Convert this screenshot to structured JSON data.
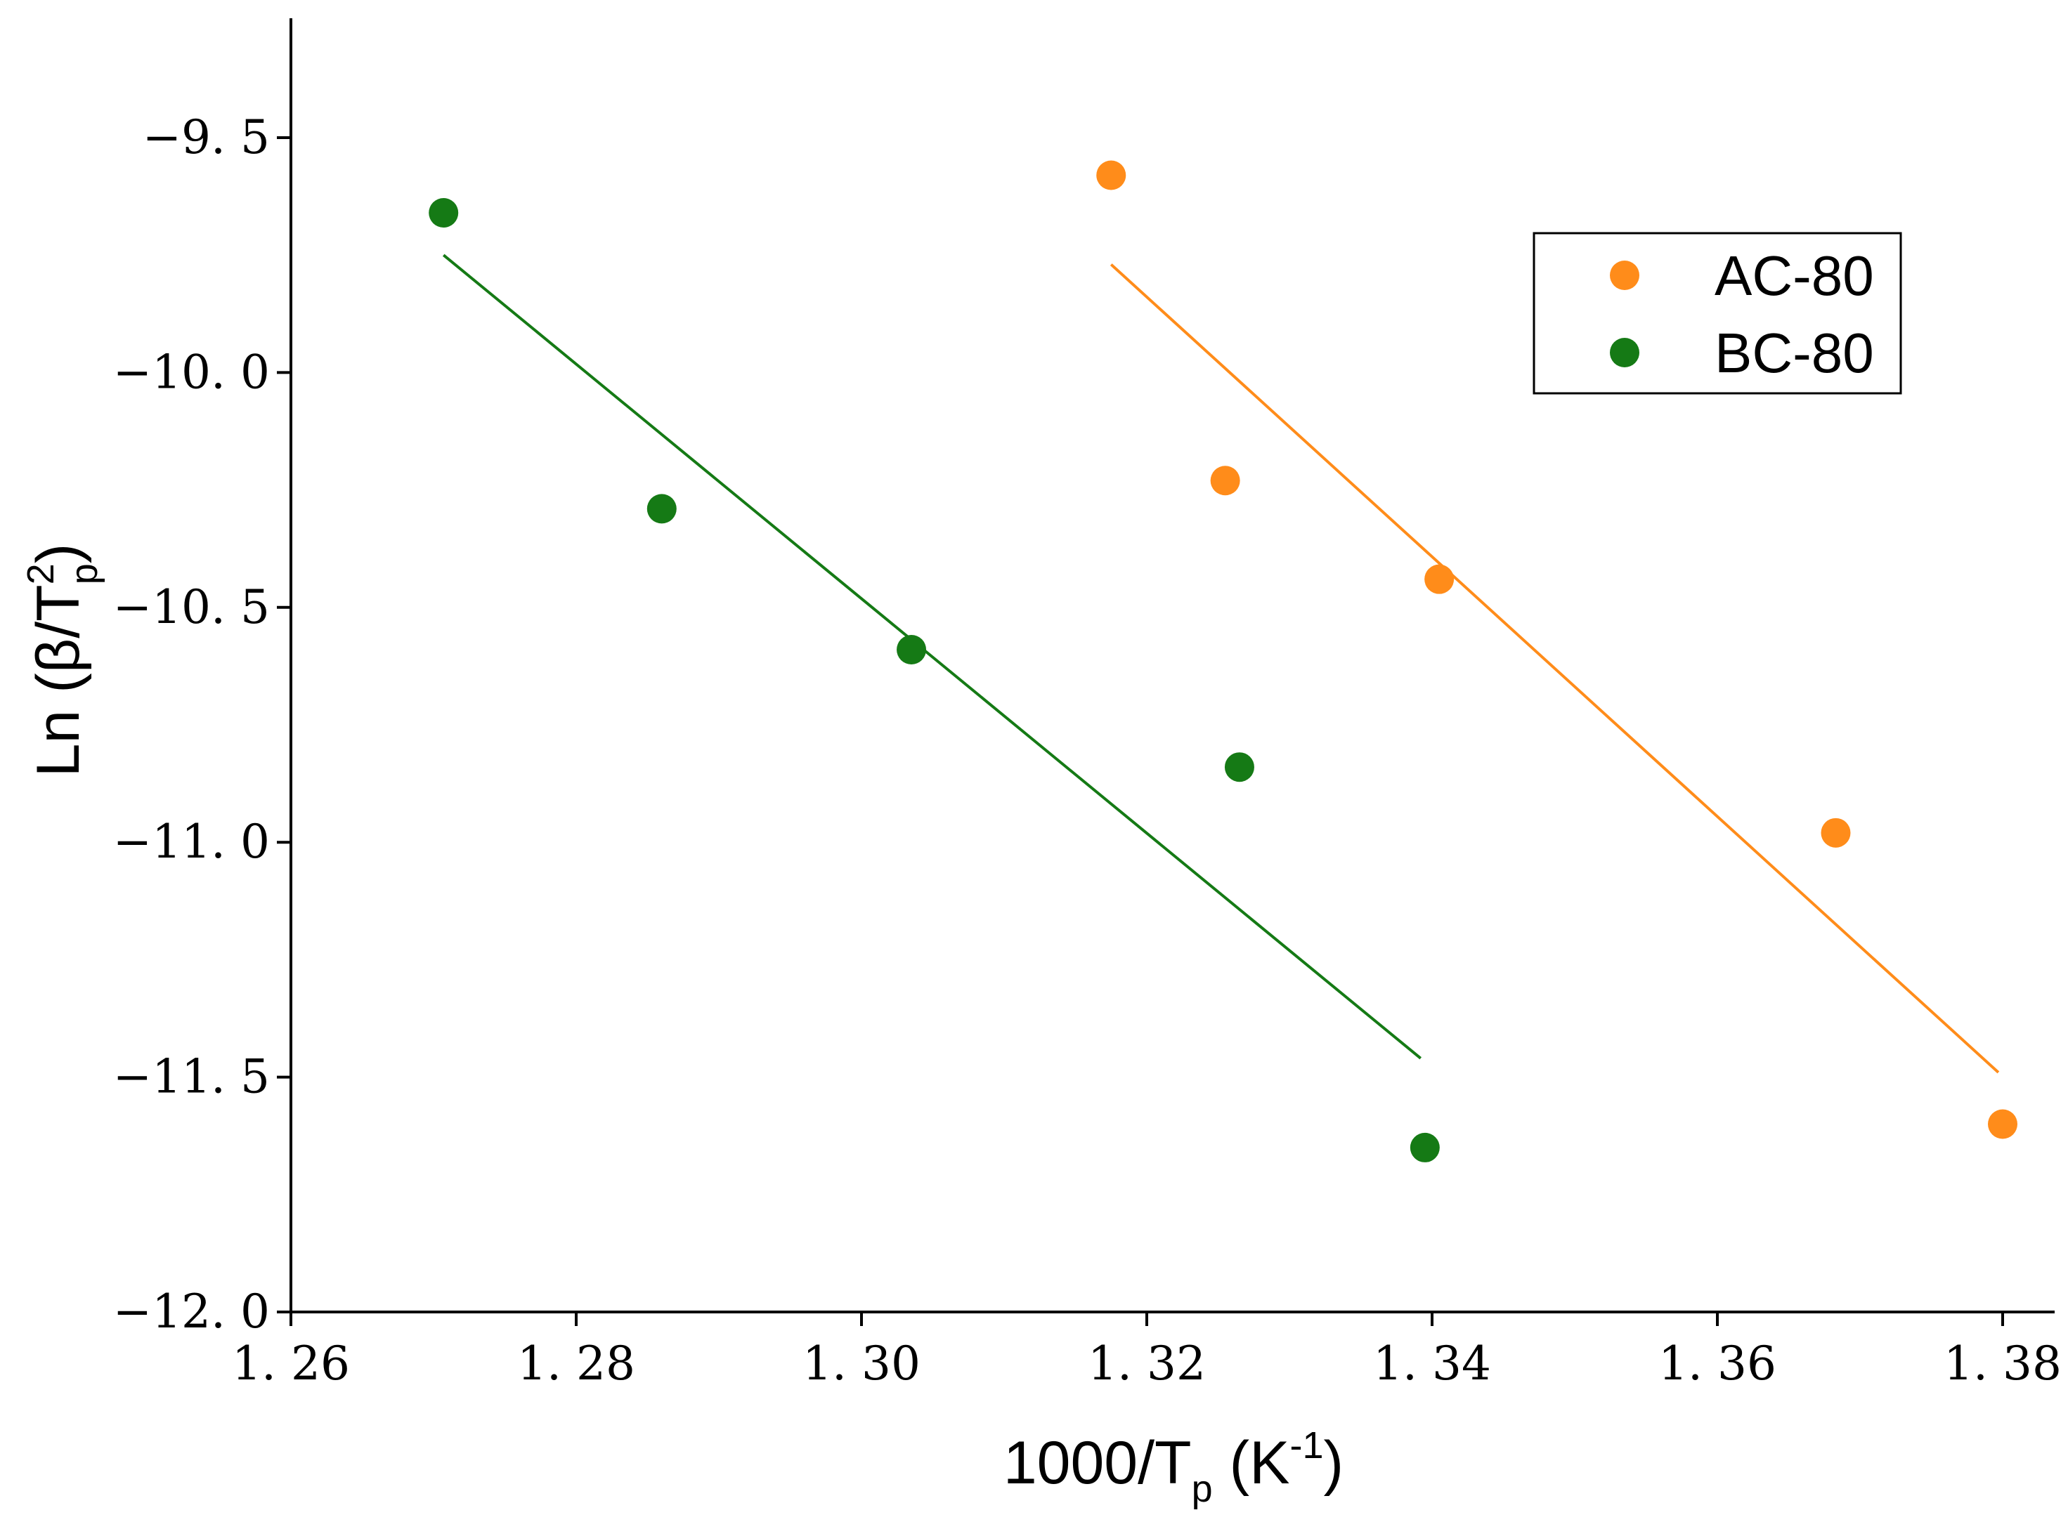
{
  "chart_data": {
    "type": "scatter",
    "title": "",
    "xlabel": {
      "main": "1000/T",
      "sub": "p",
      "unit_open": " (K",
      "unit_sup": "-1",
      "unit_close": ")"
    },
    "ylabel": {
      "main": "Ln (β/T",
      "sup": "2",
      "sub": "p",
      "close": ")"
    },
    "xlim": [
      1.26,
      1.39
    ],
    "ylim": [
      -12.0,
      -9.3
    ],
    "xticks": [
      1.26,
      1.28,
      1.3,
      1.32,
      1.34,
      1.36,
      1.38
    ],
    "xtick_labels": [
      "1. 26",
      "1. 28",
      "1. 30",
      "1. 32",
      "1. 34",
      "1. 36",
      "1. 38"
    ],
    "yticks": [
      -12.0,
      -11.5,
      -11.0,
      -10.5,
      -10.0,
      -9.5
    ],
    "ytick_labels": [
      "−12. 0",
      "−11. 5",
      "−11. 0",
      "−10. 5",
      "−10. 0",
      "−9. 5"
    ],
    "grid": false,
    "legend_position": "top-right",
    "series": [
      {
        "name": "AC-80",
        "color": "#ff8c1a",
        "x": [
          1.3175,
          1.3255,
          1.3405,
          1.3683,
          1.38
        ],
        "y": [
          -9.58,
          -10.23,
          -10.44,
          -10.98,
          -11.6
        ],
        "fit": {
          "x": [
            1.3175,
            1.3797
          ],
          "y": [
            -9.77,
            -11.49
          ]
        }
      },
      {
        "name": "BC-80",
        "color": "#157a15",
        "x": [
          1.2707,
          1.286,
          1.3035,
          1.3265,
          1.3395
        ],
        "y": [
          -9.66,
          -10.29,
          -10.59,
          -10.84,
          -11.65
        ],
        "fit": {
          "x": [
            1.2707,
            1.3392
          ],
          "y": [
            -9.75,
            -11.46
          ]
        }
      }
    ]
  }
}
